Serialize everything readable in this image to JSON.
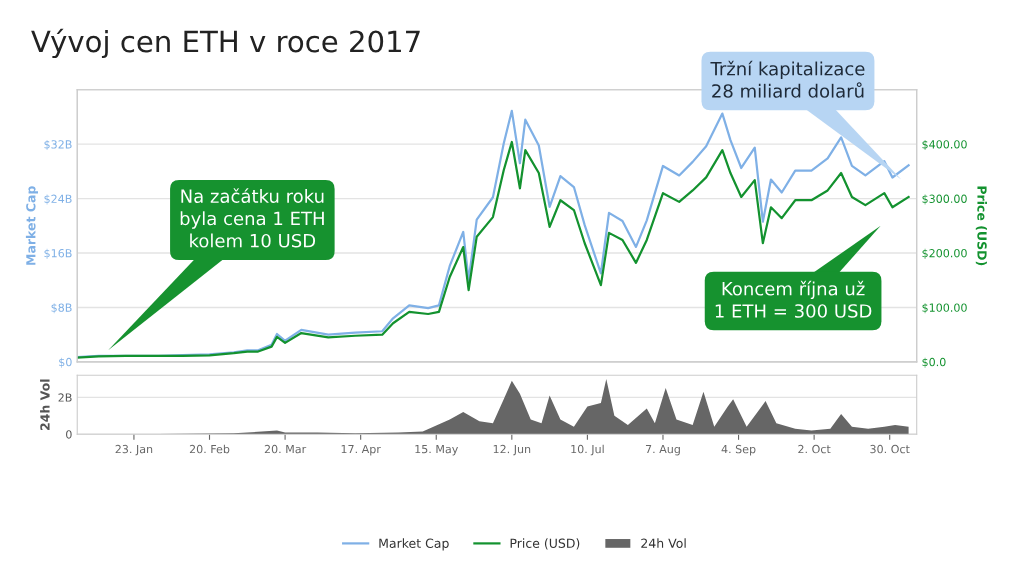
{
  "chart_data": [
    {
      "type": "line",
      "title": "Vývoj cen ETH v roce 2017",
      "ylabel": "Market Cap",
      "y2label": "Price (USD)",
      "xlim": [
        "2017-01-02",
        "2017-11-09"
      ],
      "ylim": [
        0,
        40
      ],
      "yticks": [
        {
          "value": 0,
          "label": "$0"
        },
        {
          "value": 8,
          "label": "$8B"
        },
        {
          "value": 16,
          "label": "$16B"
        },
        {
          "value": 24,
          "label": "$24B"
        },
        {
          "value": 32,
          "label": "$32B"
        }
      ],
      "y2lim": [
        0,
        500
      ],
      "y2ticks": [
        {
          "value": 0,
          "label": "$0.0"
        },
        {
          "value": 100,
          "label": "$100.00"
        },
        {
          "value": 200,
          "label": "$200.00"
        },
        {
          "value": 300,
          "label": "$300.00"
        },
        {
          "value": 400,
          "label": "$400.00"
        }
      ],
      "grid": "y",
      "legend": "bottom",
      "tick_labels": "y",
      "x": [
        "2017-01-02",
        "2017-01-10",
        "2017-01-20",
        "2017-02-01",
        "2017-02-10",
        "2017-02-20",
        "2017-03-01",
        "2017-03-06",
        "2017-03-10",
        "2017-03-15",
        "2017-03-17",
        "2017-03-20",
        "2017-03-26",
        "2017-04-05",
        "2017-04-15",
        "2017-04-25",
        "2017-04-29",
        "2017-05-05",
        "2017-05-12",
        "2017-05-16",
        "2017-05-20",
        "2017-05-25",
        "2017-05-27",
        "2017-05-30",
        "2017-06-05",
        "2017-06-09",
        "2017-06-12",
        "2017-06-15",
        "2017-06-17",
        "2017-06-22",
        "2017-06-26",
        "2017-06-30",
        "2017-07-05",
        "2017-07-09",
        "2017-07-15",
        "2017-07-18",
        "2017-07-23",
        "2017-07-28",
        "2017-08-01",
        "2017-08-07",
        "2017-08-13",
        "2017-08-18",
        "2017-08-23",
        "2017-08-29",
        "2017-09-01",
        "2017-09-05",
        "2017-09-10",
        "2017-09-13",
        "2017-09-16",
        "2017-09-20",
        "2017-09-25",
        "2017-10-01",
        "2017-10-07",
        "2017-10-12",
        "2017-10-16",
        "2017-10-21",
        "2017-10-28",
        "2017-10-31",
        "2017-11-06"
      ],
      "series": [
        {
          "name": "Market Cap",
          "color": "#7fb0e6",
          "values": [
            0.7,
            0.9,
            0.9,
            0.9,
            1.0,
            1.1,
            1.4,
            1.7,
            1.7,
            2.5,
            4.1,
            3.1,
            4.7,
            4.0,
            4.3,
            4.5,
            6.4,
            8.3,
            7.9,
            8.3,
            14.1,
            19.1,
            12.0,
            20.9,
            24.2,
            32.1,
            36.9,
            29.2,
            35.6,
            31.8,
            22.8,
            27.3,
            25.7,
            20.1,
            13.0,
            21.9,
            20.7,
            16.9,
            20.8,
            28.8,
            27.4,
            29.4,
            31.7,
            36.5,
            32.6,
            28.5,
            31.5,
            20.6,
            26.8,
            24.9,
            28.1,
            28.1,
            29.9,
            33.0,
            28.8,
            27.4,
            29.5,
            27.1,
            28.9
          ]
        },
        {
          "name": "Price (USD)",
          "color": "#13922f",
          "axis": "y2",
          "values": [
            8,
            10,
            11,
            11,
            11,
            12,
            16,
            19,
            19,
            28,
            46,
            35,
            53,
            45,
            48,
            50,
            71,
            92,
            88,
            92,
            156,
            211,
            132,
            230,
            266,
            352,
            404,
            319,
            389,
            347,
            248,
            297,
            279,
            218,
            141,
            237,
            224,
            182,
            224,
            310,
            294,
            315,
            339,
            389,
            347,
            303,
            334,
            218,
            284,
            264,
            297,
            297,
            315,
            347,
            303,
            288,
            310,
            284,
            303
          ]
        }
      ],
      "annotations": [
        "Tržní kapitalizace\n28 miliard dolarů",
        "Na začátku roku\nbyla cena 1 ETH\nkolem 10 USD",
        "Koncem října už\n1 ETH = 300 USD"
      ]
    },
    {
      "type": "area",
      "ylabel": "24h Vol",
      "xlim": [
        "2017-01-02",
        "2017-11-09"
      ],
      "xticks": [
        {
          "value": "2017-01-23",
          "label": "23. Jan"
        },
        {
          "value": "2017-02-20",
          "label": "20. Feb"
        },
        {
          "value": "2017-03-20",
          "label": "20. Mar"
        },
        {
          "value": "2017-04-17",
          "label": "17. Apr"
        },
        {
          "value": "2017-05-15",
          "label": "15. May"
        },
        {
          "value": "2017-06-12",
          "label": "12. Jun"
        },
        {
          "value": "2017-07-10",
          "label": "10. Jul"
        },
        {
          "value": "2017-08-07",
          "label": "7. Aug"
        },
        {
          "value": "2017-09-04",
          "label": "4. Sep"
        },
        {
          "value": "2017-10-02",
          "label": "2. Oct"
        },
        {
          "value": "2017-10-30",
          "label": "30. Oct"
        }
      ],
      "ylim": [
        0,
        3.2
      ],
      "yticks": [
        {
          "value": 0,
          "label": "0"
        },
        {
          "value": 2,
          "label": "2B"
        }
      ],
      "grid": "y",
      "legend": "bottom",
      "x": [
        "2017-01-02",
        "2017-02-01",
        "2017-03-01",
        "2017-03-17",
        "2017-03-20",
        "2017-04-01",
        "2017-04-15",
        "2017-05-01",
        "2017-05-10",
        "2017-05-20",
        "2017-05-25",
        "2017-05-31",
        "2017-06-05",
        "2017-06-09",
        "2017-06-12",
        "2017-06-15",
        "2017-06-19",
        "2017-06-23",
        "2017-06-26",
        "2017-06-30",
        "2017-07-05",
        "2017-07-10",
        "2017-07-15",
        "2017-07-17",
        "2017-07-20",
        "2017-07-25",
        "2017-08-01",
        "2017-08-04",
        "2017-08-08",
        "2017-08-12",
        "2017-08-18",
        "2017-08-22",
        "2017-08-26",
        "2017-08-31",
        "2017-09-02",
        "2017-09-07",
        "2017-09-14",
        "2017-09-18",
        "2017-09-25",
        "2017-10-01",
        "2017-10-08",
        "2017-10-12",
        "2017-10-16",
        "2017-10-22",
        "2017-10-28",
        "2017-11-01",
        "2017-11-06"
      ],
      "series": [
        {
          "name": "24h Vol",
          "color": "#666666",
          "values": [
            0.01,
            0.02,
            0.05,
            0.2,
            0.1,
            0.1,
            0.05,
            0.1,
            0.15,
            0.8,
            1.2,
            0.7,
            0.6,
            1.9,
            2.9,
            2.2,
            0.8,
            0.6,
            2.1,
            0.8,
            0.4,
            1.5,
            1.7,
            3.0,
            1.0,
            0.5,
            1.4,
            0.6,
            2.5,
            0.8,
            0.5,
            2.3,
            0.4,
            1.5,
            1.9,
            0.4,
            1.8,
            0.6,
            0.3,
            0.2,
            0.3,
            1.1,
            0.4,
            0.3,
            0.4,
            0.5,
            0.4
          ]
        }
      ]
    }
  ]
}
